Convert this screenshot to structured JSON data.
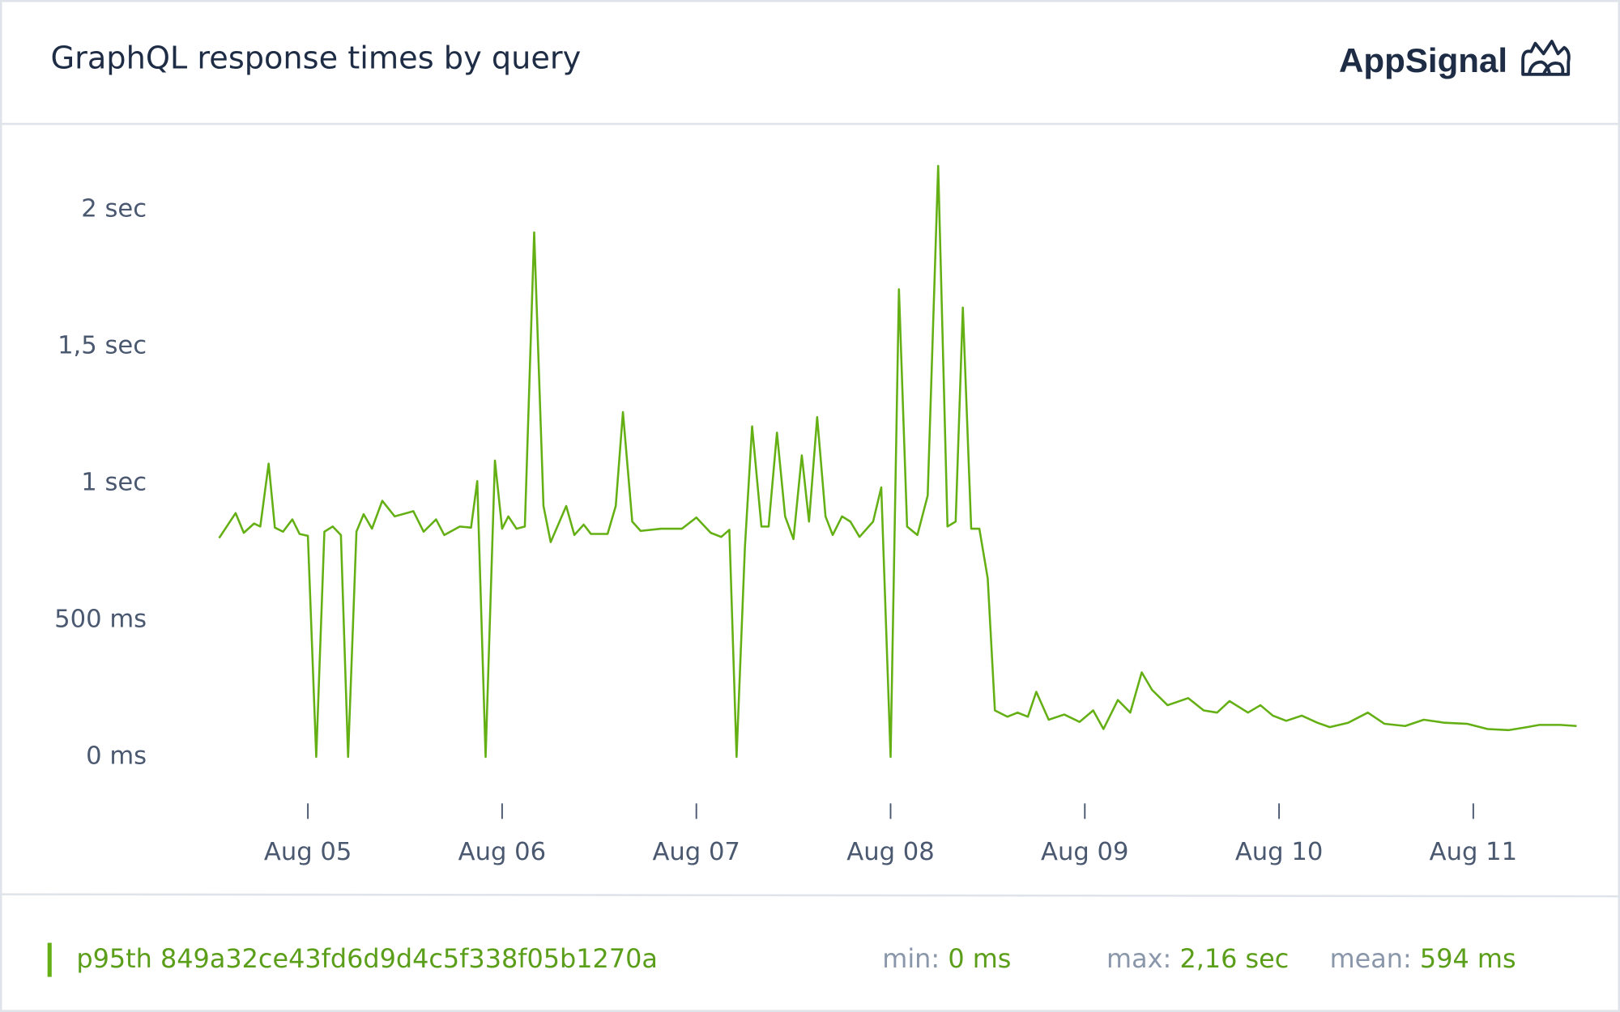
{
  "chart_data": {
    "type": "line",
    "title": "GraphQL response times by query",
    "brand": "AppSignal",
    "x": [
      4.543,
      4.628,
      4.67,
      4.723,
      4.755,
      4.798,
      4.83,
      4.872,
      4.92,
      4.957,
      5.0,
      5.043,
      5.085,
      5.128,
      5.17,
      5.207,
      5.25,
      5.287,
      5.33,
      5.383,
      5.447,
      5.543,
      5.596,
      5.66,
      5.702,
      5.782,
      5.84,
      5.872,
      5.915,
      5.963,
      6.0,
      6.032,
      6.074,
      6.117,
      6.165,
      6.213,
      6.25,
      6.33,
      6.372,
      6.42,
      6.457,
      6.543,
      6.585,
      6.622,
      6.67,
      6.713,
      6.819,
      6.926,
      7.0,
      7.074,
      7.128,
      7.17,
      7.207,
      7.25,
      7.287,
      7.335,
      7.372,
      7.415,
      7.457,
      7.5,
      7.543,
      7.58,
      7.622,
      7.665,
      7.702,
      7.75,
      7.793,
      7.84,
      7.91,
      7.952,
      8.0,
      8.043,
      8.085,
      8.138,
      8.191,
      8.245,
      8.293,
      8.335,
      8.372,
      8.415,
      8.457,
      8.5,
      8.537,
      8.601,
      8.654,
      8.707,
      8.75,
      8.814,
      8.894,
      8.973,
      9.043,
      9.096,
      9.17,
      9.234,
      9.293,
      9.346,
      9.426,
      9.532,
      9.612,
      9.681,
      9.745,
      9.84,
      9.904,
      9.968,
      10.037,
      10.117,
      10.197,
      10.261,
      10.356,
      10.457,
      10.543,
      10.649,
      10.745,
      10.851,
      10.968,
      11.074,
      11.181,
      11.277,
      11.34,
      11.447,
      11.532
    ],
    "series": [
      {
        "name": "p95th 849a32ce43fd6d9d4c5f338f05b1270a",
        "color": "#64b014",
        "values": [
          800,
          891,
          819,
          853,
          842,
          1072,
          838,
          823,
          868,
          815,
          808,
          0,
          823,
          842,
          811,
          0,
          823,
          887,
          834,
          936,
          879,
          898,
          823,
          868,
          811,
          842,
          838,
          1008,
          0,
          1083,
          834,
          879,
          834,
          842,
          1917,
          917,
          785,
          917,
          811,
          849,
          815,
          815,
          917,
          1260,
          860,
          826,
          834,
          834,
          875,
          819,
          804,
          830,
          0,
          766,
          1208,
          842,
          842,
          1185,
          879,
          796,
          1102,
          860,
          1242,
          879,
          811,
          879,
          860,
          804,
          860,
          985,
          0,
          1709,
          842,
          811,
          955,
          2160,
          842,
          860,
          1642,
          834,
          834,
          653,
          170,
          147,
          162,
          147,
          238,
          136,
          155,
          128,
          170,
          102,
          208,
          162,
          309,
          245,
          189,
          215,
          170,
          162,
          204,
          162,
          189,
          151,
          132,
          151,
          125,
          109,
          125,
          162,
          121,
          113,
          136,
          125,
          121,
          102,
          98,
          109,
          117,
          117,
          113
        ]
      }
    ],
    "xlim": [
      4.5,
      11.6
    ],
    "xticks": [
      {
        "value": 5,
        "label": "Aug 05"
      },
      {
        "value": 6,
        "label": "Aug 06"
      },
      {
        "value": 7,
        "label": "Aug 07"
      },
      {
        "value": 8,
        "label": "Aug 08"
      },
      {
        "value": 9,
        "label": "Aug 09"
      },
      {
        "value": 10,
        "label": "Aug 10"
      },
      {
        "value": 11,
        "label": "Aug 11"
      }
    ],
    "ylim": [
      -100,
      2300
    ],
    "yticks": [
      {
        "value": 0,
        "label": "0 ms"
      },
      {
        "value": 500,
        "label": "500 ms"
      },
      {
        "value": 1000,
        "label": "1 sec"
      },
      {
        "value": 1500,
        "label": "1,5 sec"
      },
      {
        "value": 2000,
        "label": "2 sec"
      }
    ],
    "grid": false,
    "summary": [
      {
        "label": "min:",
        "value": "0 ms"
      },
      {
        "label": "max:",
        "value": "2,16 sec"
      },
      {
        "label": "mean:",
        "value": "594 ms"
      }
    ]
  }
}
